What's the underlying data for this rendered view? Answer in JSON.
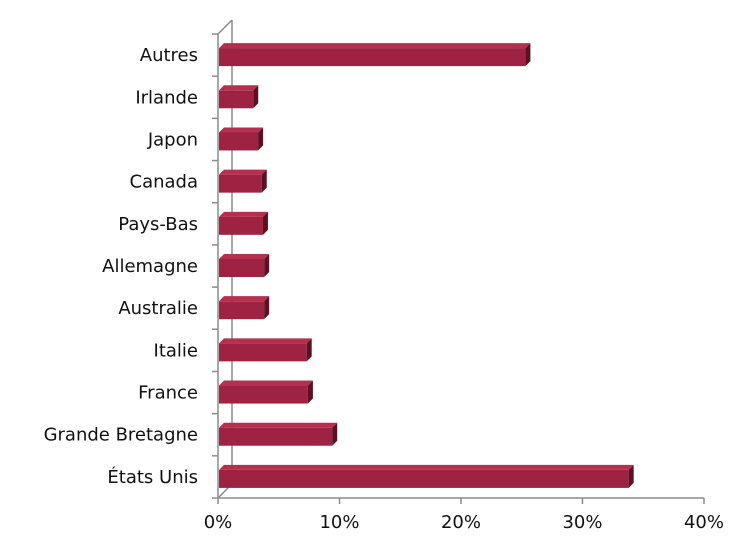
{
  "chart_data": {
    "type": "bar",
    "orientation": "horizontal",
    "style": "3d",
    "categories": [
      "Autres",
      "Irlande",
      "Japon",
      "Canada",
      "Pays-Bas",
      "Allemagne",
      "Australie",
      "Italie",
      "France",
      "Grande Bretagne",
      "États Unis"
    ],
    "values": [
      25.3,
      2.9,
      3.3,
      3.6,
      3.7,
      3.8,
      3.8,
      7.3,
      7.4,
      9.4,
      33.8
    ],
    "xlim": [
      0,
      40
    ],
    "x_ticks": [
      "0%",
      "10%",
      "20%",
      "30%",
      "40%"
    ],
    "grid": false,
    "legend": "none",
    "colors": {
      "bar_front": "#9e2242",
      "bar_top": "#b5304f",
      "bar_side": "#5e0f22",
      "axis": "#8c8c8c"
    }
  }
}
